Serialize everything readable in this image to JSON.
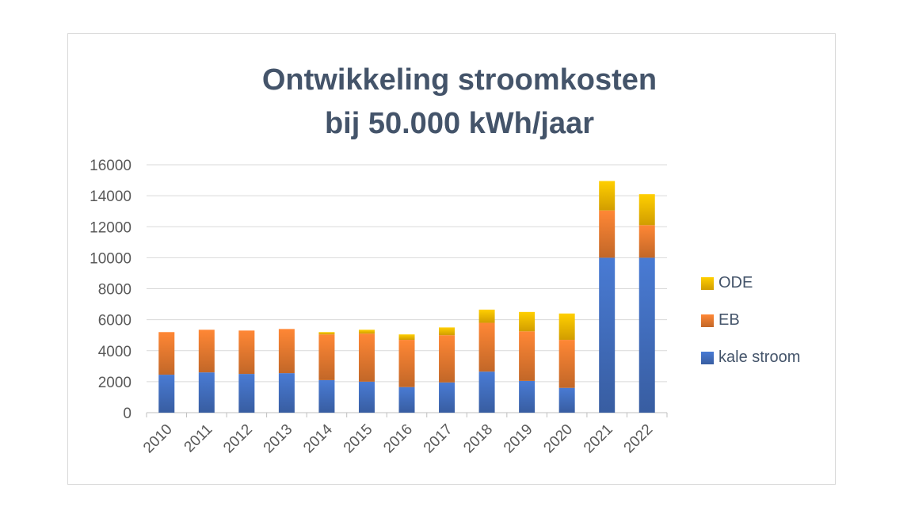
{
  "chart_data": {
    "type": "bar",
    "stacked": true,
    "title_lines": [
      "Ontwikkeling stroomkosten",
      "bij 50.000 kWh/jaar"
    ],
    "categories": [
      "2010",
      "2011",
      "2012",
      "2013",
      "2014",
      "2015",
      "2016",
      "2017",
      "2018",
      "2019",
      "2020",
      "2021",
      "2022"
    ],
    "series": [
      {
        "name": "kale stroom",
        "color": "#4472c4",
        "values": [
          2450,
          2600,
          2500,
          2550,
          2100,
          2000,
          1650,
          1950,
          2650,
          2050,
          1600,
          10000,
          10000
        ]
      },
      {
        "name": "EB",
        "color": "#ed7d31",
        "values": [
          2750,
          2750,
          2800,
          2850,
          2950,
          3100,
          3050,
          3050,
          3150,
          3200,
          3100,
          3050,
          2100
        ]
      },
      {
        "name": "ODE",
        "color": "#ffc000",
        "values": [
          0,
          0,
          0,
          0,
          150,
          250,
          350,
          500,
          850,
          1250,
          1700,
          1900,
          2000
        ]
      }
    ],
    "ylim": [
      0,
      16000
    ],
    "yticks": [
      "0",
      "2000",
      "4000",
      "6000",
      "8000",
      "10000",
      "12000",
      "14000",
      "16000"
    ],
    "grid": true,
    "legend_position": "right"
  }
}
